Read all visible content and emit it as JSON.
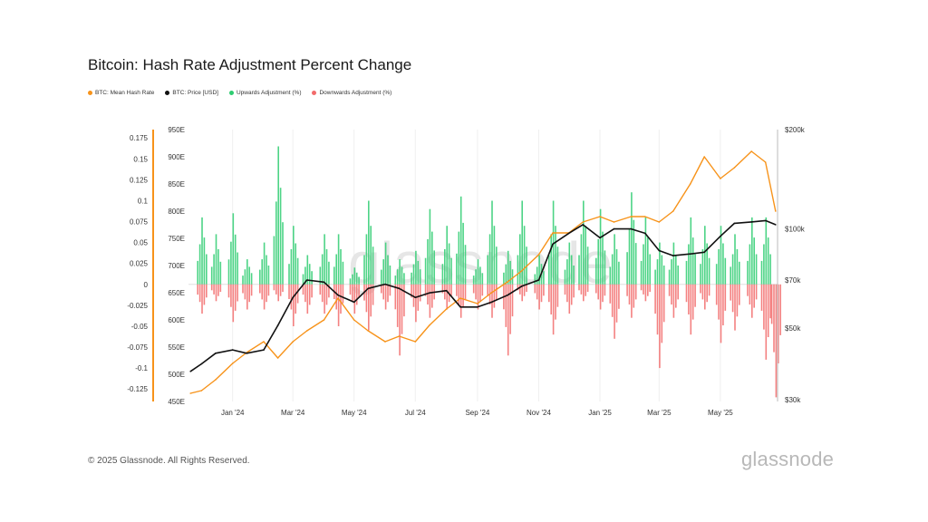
{
  "header": {
    "title": "Bitcoin: Hash Rate Adjustment Percent Change"
  },
  "legend": [
    {
      "label": "BTC: Mean Hash Rate",
      "color": "#f7931a"
    },
    {
      "label": "BTC: Price [USD]",
      "color": "#111111"
    },
    {
      "label": "Upwards Adjustment (%)",
      "color": "#2ecc71"
    },
    {
      "label": "Downwards Adjustment (%)",
      "color": "#f26b6b"
    }
  ],
  "watermark": "glassnode",
  "footer": {
    "copyright": "© 2025 Glassnode. All Rights Reserved.",
    "brand": "glassnode"
  },
  "chart_data": {
    "type": "bar+line",
    "title": "Bitcoin: Hash Rate Adjustment Percent Change",
    "x_ticks": [
      "Jan '24",
      "Mar '24",
      "May '24",
      "Jul '24",
      "Sep '24",
      "Nov '24",
      "Jan '25",
      "Mar '25",
      "May '25"
    ],
    "axes": {
      "adjustment": {
        "ticks": [
          "0.175",
          "0.15",
          "0.125",
          "0.1",
          "0.075",
          "0.05",
          "0.025",
          "0",
          "-0.025",
          "-0.05",
          "-0.075",
          "-0.1",
          "-0.125"
        ],
        "range": [
          -0.14,
          0.185
        ]
      },
      "hash_rate": {
        "ticks": [
          "950E",
          "900E",
          "850E",
          "800E",
          "750E",
          "700E",
          "650E",
          "600E",
          "550E",
          "500E",
          "450E"
        ],
        "range": [
          450,
          950
        ],
        "unit": "EH/s"
      },
      "price": {
        "ticks": [
          "$200k",
          "$100k",
          "$70k",
          "$50k",
          "$30k"
        ],
        "scale": "log",
        "range": [
          30000,
          200000
        ]
      }
    },
    "series": [
      {
        "name": "BTC: Mean Hash Rate",
        "axis": "hash_rate",
        "color": "#f7931a",
        "x": [
          "2023-11-20",
          "2023-12-01",
          "2023-12-15",
          "2024-01-01",
          "2024-01-15",
          "2024-02-01",
          "2024-02-15",
          "2024-03-01",
          "2024-03-15",
          "2024-04-01",
          "2024-04-15",
          "2024-05-01",
          "2024-05-15",
          "2024-06-01",
          "2024-06-15",
          "2024-07-01",
          "2024-07-15",
          "2024-08-01",
          "2024-08-15",
          "2024-09-01",
          "2024-09-15",
          "2024-10-01",
          "2024-10-15",
          "2024-11-01",
          "2024-11-15",
          "2024-12-01",
          "2024-12-15",
          "2025-01-01",
          "2025-01-15",
          "2025-02-01",
          "2025-02-15",
          "2025-03-01",
          "2025-03-15",
          "2025-04-01",
          "2025-04-15",
          "2025-05-01",
          "2025-05-15",
          "2025-06-01",
          "2025-06-15",
          "2025-06-25"
        ],
        "values": [
          465,
          470,
          490,
          520,
          540,
          560,
          530,
          560,
          580,
          600,
          640,
          600,
          580,
          560,
          570,
          560,
          590,
          620,
          640,
          630,
          650,
          670,
          690,
          720,
          760,
          760,
          780,
          790,
          780,
          790,
          790,
          780,
          800,
          850,
          900,
          860,
          880,
          910,
          890,
          800
        ]
      },
      {
        "name": "BTC: Price [USD]",
        "axis": "price",
        "color": "#111111",
        "x": [
          "2023-11-20",
          "2023-12-01",
          "2023-12-15",
          "2024-01-01",
          "2024-01-15",
          "2024-02-01",
          "2024-02-15",
          "2024-03-01",
          "2024-03-15",
          "2024-04-01",
          "2024-04-15",
          "2024-05-01",
          "2024-05-15",
          "2024-06-01",
          "2024-06-15",
          "2024-07-01",
          "2024-07-15",
          "2024-08-01",
          "2024-08-15",
          "2024-09-01",
          "2024-09-15",
          "2024-10-01",
          "2024-10-15",
          "2024-11-01",
          "2024-11-15",
          "2024-12-01",
          "2024-12-15",
          "2025-01-01",
          "2025-01-15",
          "2025-02-01",
          "2025-02-15",
          "2025-03-01",
          "2025-03-15",
          "2025-04-01",
          "2025-04-15",
          "2025-05-01",
          "2025-05-15",
          "2025-06-01",
          "2025-06-15",
          "2025-06-25"
        ],
        "values": [
          37000,
          39000,
          42000,
          43000,
          42000,
          43000,
          51000,
          62000,
          70000,
          69000,
          63000,
          60000,
          66000,
          68000,
          66000,
          62000,
          64000,
          65000,
          58000,
          58000,
          60000,
          63000,
          67000,
          70000,
          90000,
          97000,
          103000,
          94000,
          100000,
          100000,
          97000,
          86000,
          83000,
          84000,
          85000,
          95000,
          104000,
          105000,
          106000,
          103000
        ]
      },
      {
        "name": "Upwards Adjustment (%)",
        "axis": "adjustment",
        "color": "#2ecc71",
        "x": [
          "2023-12-01",
          "2023-12-15",
          "2024-01-01",
          "2024-01-15",
          "2024-02-01",
          "2024-02-15",
          "2024-03-01",
          "2024-03-15",
          "2024-04-01",
          "2024-04-15",
          "2024-05-01",
          "2024-05-15",
          "2024-06-01",
          "2024-06-15",
          "2024-07-01",
          "2024-07-15",
          "2024-08-01",
          "2024-08-15",
          "2024-09-01",
          "2024-09-15",
          "2024-10-01",
          "2024-10-15",
          "2024-11-01",
          "2024-11-15",
          "2024-12-01",
          "2024-12-15",
          "2025-01-01",
          "2025-01-15",
          "2025-02-01",
          "2025-02-15",
          "2025-03-01",
          "2025-03-15",
          "2025-04-01",
          "2025-04-15",
          "2025-05-01",
          "2025-05-15",
          "2025-06-01",
          "2025-06-15"
        ],
        "values": [
          0.08,
          0.06,
          0.085,
          0.03,
          0.05,
          0.165,
          0.07,
          0.035,
          0.06,
          0.06,
          0.02,
          0.1,
          0.05,
          0.03,
          0.04,
          0.09,
          0.07,
          0.105,
          0.03,
          0.1,
          0.04,
          0.1,
          0.035,
          0.1,
          0.05,
          0.1,
          0.09,
          0.06,
          0.11,
          0.08,
          0.05,
          0.05,
          0.08,
          0.07,
          0.07,
          0.06,
          0.08,
          0.08
        ]
      },
      {
        "name": "Downwards Adjustment (%)",
        "axis": "adjustment",
        "color": "#f26b6b",
        "x": [
          "2023-12-01",
          "2023-12-15",
          "2024-01-01",
          "2024-01-15",
          "2024-02-01",
          "2024-02-15",
          "2024-03-01",
          "2024-03-15",
          "2024-04-01",
          "2024-04-15",
          "2024-05-01",
          "2024-05-15",
          "2024-06-01",
          "2024-06-15",
          "2024-07-01",
          "2024-07-15",
          "2024-08-01",
          "2024-08-15",
          "2024-09-01",
          "2024-09-15",
          "2024-10-01",
          "2024-10-15",
          "2024-11-01",
          "2024-11-15",
          "2024-12-01",
          "2024-12-15",
          "2025-01-01",
          "2025-01-15",
          "2025-02-01",
          "2025-02-15",
          "2025-03-01",
          "2025-03-15",
          "2025-04-01",
          "2025-04-15",
          "2025-05-01",
          "2025-05-15",
          "2025-06-01",
          "2025-06-15",
          "2025-06-25"
        ],
        "values": [
          -0.035,
          -0.02,
          -0.045,
          -0.03,
          -0.03,
          -0.02,
          -0.05,
          -0.035,
          -0.035,
          -0.05,
          -0.035,
          -0.055,
          -0.03,
          -0.085,
          -0.045,
          -0.04,
          -0.03,
          -0.04,
          -0.03,
          -0.04,
          -0.085,
          -0.02,
          -0.03,
          -0.06,
          -0.035,
          -0.02,
          -0.03,
          -0.065,
          -0.04,
          -0.02,
          -0.1,
          -0.04,
          -0.06,
          -0.03,
          -0.07,
          -0.055,
          -0.04,
          -0.09,
          -0.135
        ]
      }
    ]
  }
}
